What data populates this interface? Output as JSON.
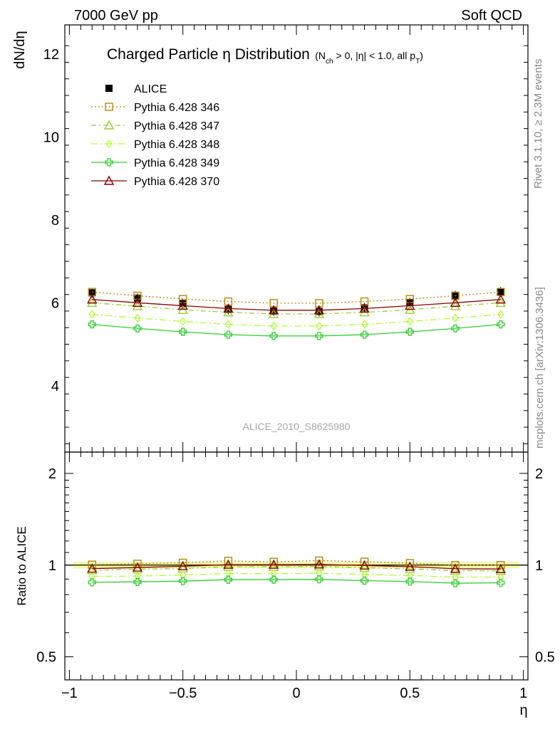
{
  "header": {
    "energy": "7000 GeV pp",
    "category": "Soft QCD"
  },
  "side_texts": {
    "rivet": "Rivet 3.1.10, ≥ 2.3M events",
    "mcplots": "mcplots.cern.ch [arXiv:1306.3436]"
  },
  "watermark": "ALICE_2010_S8625980",
  "colors": {
    "alice": "#000000",
    "p346": "#b8860b",
    "p347": "#9acd32",
    "p348": "#adff2f",
    "p349": "#32cd32",
    "p370": "#8b0000",
    "band_inner": "#ffff99",
    "band_outer": "#e6f7c2"
  },
  "chart_data": [
    {
      "type": "scatter",
      "title_main": "Charged Particle η Distribution",
      "title_sub": "(N_ch > 0, |η| < 1.0, all p_T)",
      "ylabel": "dN/dη",
      "ylim": [
        2.4,
        12.7
      ],
      "yticks": [
        4,
        6,
        8,
        10,
        12
      ],
      "xlim": [
        -1.02,
        1.02
      ],
      "x": [
        -0.9,
        -0.7,
        -0.5,
        -0.3,
        -0.1,
        0.1,
        0.3,
        0.5,
        0.7,
        0.9
      ],
      "series": [
        {
          "name": "ALICE",
          "values": [
            6.24,
            6.11,
            5.98,
            5.84,
            5.8,
            5.79,
            5.88,
            6.0,
            6.17,
            6.26
          ]
        },
        {
          "name": "Pythia 6.428 346",
          "values": [
            6.26,
            6.17,
            6.09,
            6.03,
            5.99,
            5.99,
            6.03,
            6.09,
            6.17,
            6.26
          ]
        },
        {
          "name": "Pythia 6.428 347",
          "values": [
            6.0,
            5.92,
            5.83,
            5.77,
            5.73,
            5.73,
            5.77,
            5.83,
            5.92,
            6.0
          ]
        },
        {
          "name": "Pythia 6.428 348",
          "values": [
            5.72,
            5.63,
            5.55,
            5.48,
            5.44,
            5.44,
            5.48,
            5.55,
            5.63,
            5.72
          ]
        },
        {
          "name": "Pythia 6.428 349",
          "values": [
            5.48,
            5.38,
            5.3,
            5.23,
            5.2,
            5.2,
            5.23,
            5.3,
            5.38,
            5.48
          ]
        },
        {
          "name": "Pythia 6.428 370",
          "values": [
            6.08,
            6.0,
            5.93,
            5.86,
            5.82,
            5.82,
            5.86,
            5.93,
            6.0,
            6.08
          ]
        }
      ]
    },
    {
      "type": "scatter",
      "ylabel": "Ratio to ALICE",
      "xlabel": "η",
      "ylog": true,
      "ylim": [
        0.42,
        2.35
      ],
      "yticks": [
        0.5,
        1,
        2
      ],
      "xlim": [
        -1.02,
        1.02
      ],
      "xticks": [
        -1,
        -0.5,
        0,
        0.5,
        1
      ],
      "xtick_labels": [
        "−1",
        "−0.5",
        "0",
        "0.5",
        "1"
      ],
      "x": [
        -0.9,
        -0.7,
        -0.5,
        -0.3,
        -0.1,
        0.1,
        0.3,
        0.5,
        0.7,
        0.9
      ],
      "band": {
        "inner": [
          0.985,
          1.015
        ],
        "outer": [
          0.975,
          1.025
        ]
      },
      "series": [
        {
          "name": "Pythia 6.428 346",
          "values": [
            1.003,
            1.01,
            1.018,
            1.033,
            1.025,
            1.035,
            1.026,
            1.015,
            1.0,
            1.0
          ]
        },
        {
          "name": "Pythia 6.428 347",
          "values": [
            0.962,
            0.969,
            0.975,
            0.988,
            0.988,
            0.99,
            0.981,
            0.972,
            0.96,
            0.958
          ]
        },
        {
          "name": "Pythia 6.428 348",
          "values": [
            0.917,
            0.921,
            0.928,
            0.938,
            0.938,
            0.94,
            0.932,
            0.925,
            0.913,
            0.913
          ]
        },
        {
          "name": "Pythia 6.428 349",
          "values": [
            0.878,
            0.881,
            0.886,
            0.896,
            0.896,
            0.898,
            0.889,
            0.883,
            0.872,
            0.875
          ]
        },
        {
          "name": "Pythia 6.428 370",
          "values": [
            0.974,
            0.982,
            0.992,
            1.003,
            1.003,
            1.005,
            0.997,
            0.988,
            0.973,
            0.971
          ]
        }
      ]
    }
  ]
}
